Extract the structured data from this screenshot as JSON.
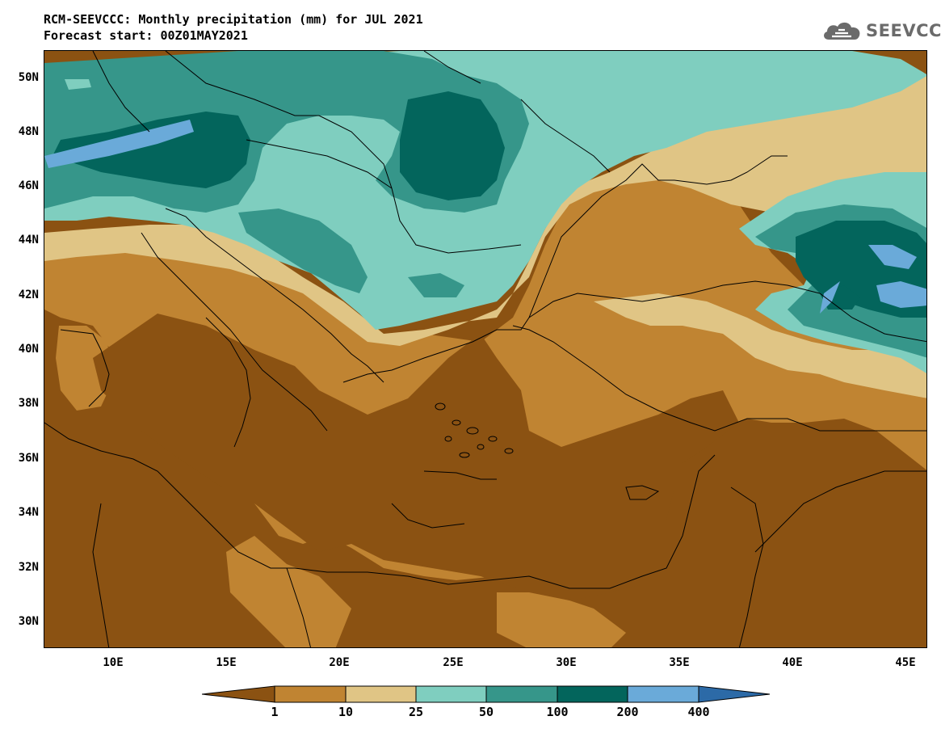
{
  "header": {
    "title_line1": "RCM-SEEVCCC: Monthly precipitation (mm) for JUL 2021",
    "title_line2": "Forecast start: 00Z01MAY2021"
  },
  "logo": {
    "text": "SEEVCCC",
    "icon": "cloud-logo-icon",
    "color": "#6b6b6b"
  },
  "map": {
    "extent": {
      "lon": [
        7,
        46
      ],
      "lat": [
        29,
        51
      ]
    },
    "lat_labels": [
      "50N",
      "48N",
      "46N",
      "44N",
      "42N",
      "40N",
      "38N",
      "36N",
      "34N",
      "32N",
      "30N"
    ],
    "lon_labels": [
      "10E",
      "15E",
      "20E",
      "25E",
      "30E",
      "35E",
      "40E",
      "45E"
    ]
  },
  "legend": {
    "labels": [
      "1",
      "10",
      "25",
      "50",
      "100",
      "200",
      "400"
    ],
    "colors": [
      "#8b5212",
      "#c08432",
      "#e0c585",
      "#7fcebf",
      "#36968a",
      "#03655c",
      "#6aaad9",
      "#2c6aa7"
    ]
  }
}
